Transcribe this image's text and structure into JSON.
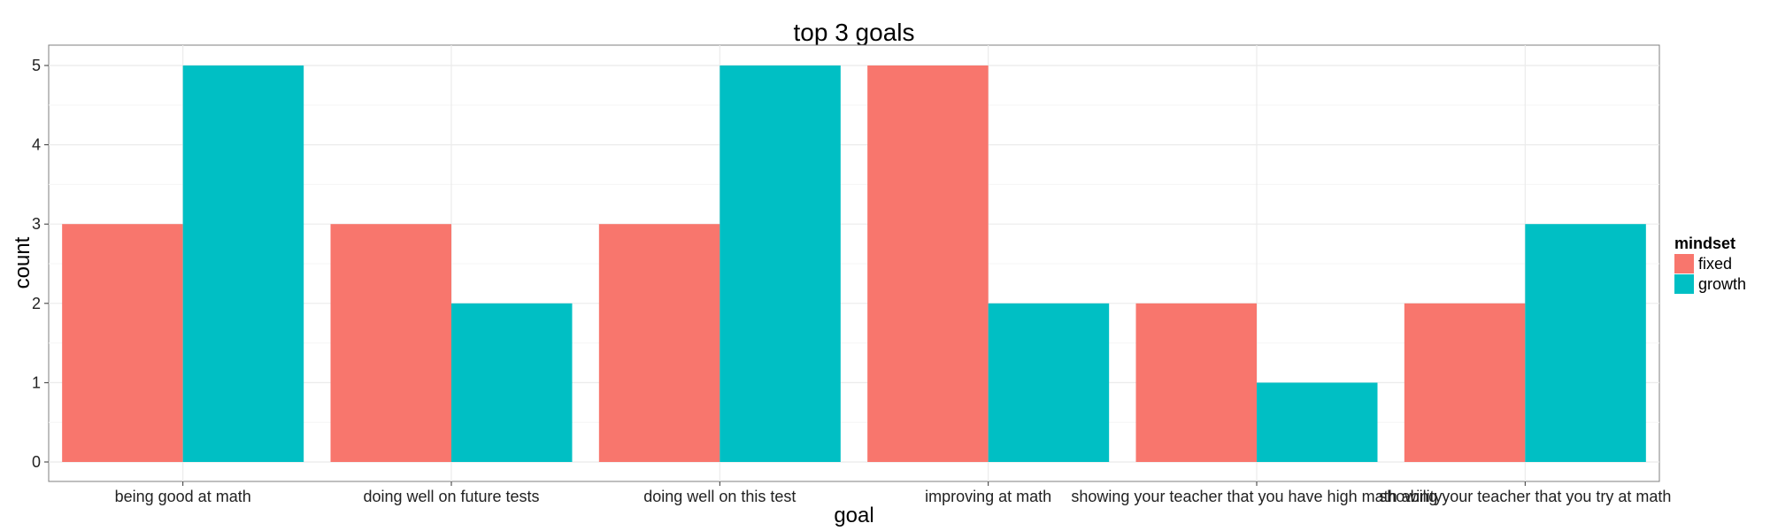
{
  "chart_data": {
    "type": "bar",
    "title": "top 3 goals",
    "xlabel": "goal",
    "ylabel": "count",
    "categories": [
      "being good at math",
      "doing well on future tests",
      "doing well on this test",
      "improving at math",
      "showing your teacher that you have high math ability",
      "showing your teacher that you try at math"
    ],
    "series": [
      {
        "name": "fixed",
        "color": "#F8766D",
        "values": [
          3,
          3,
          3,
          5,
          2,
          2
        ]
      },
      {
        "name": "growth",
        "color": "#00BFC4",
        "values": [
          5,
          2,
          5,
          2,
          1,
          3
        ]
      }
    ],
    "ylim": [
      0,
      5
    ],
    "yticks": [
      0,
      1,
      2,
      3,
      4,
      5
    ],
    "grid": true,
    "legend": {
      "title": "mindset",
      "position": "right"
    }
  }
}
